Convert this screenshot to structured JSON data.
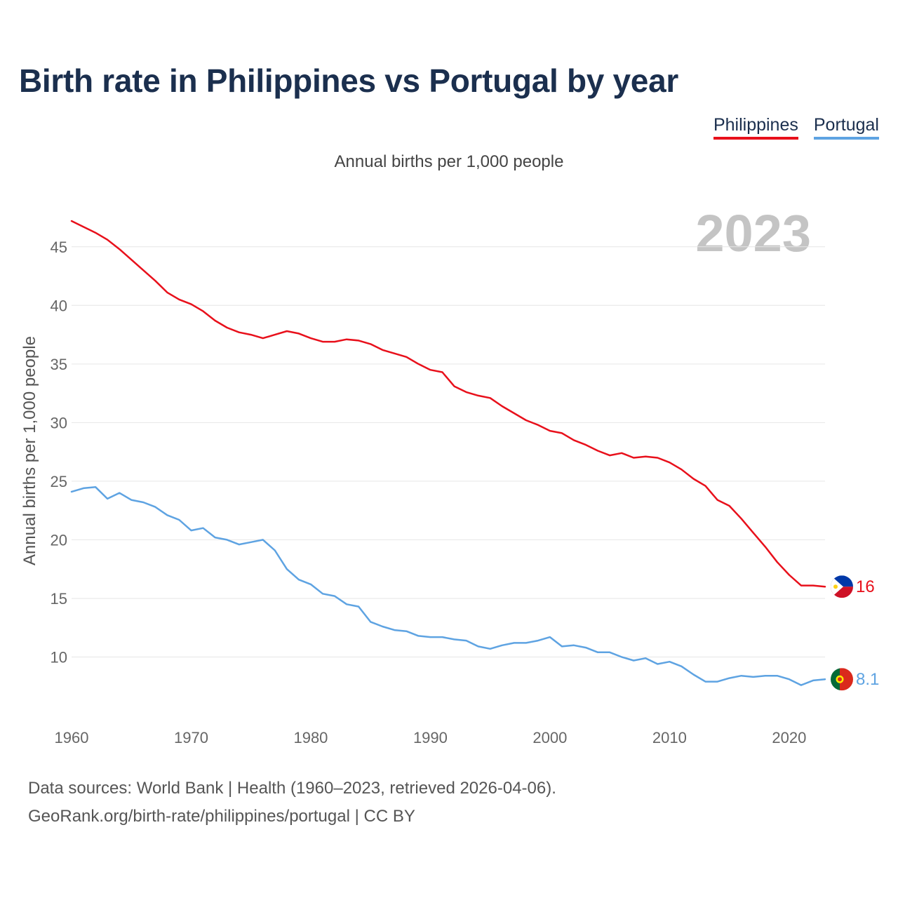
{
  "chart_data": {
    "type": "line",
    "title": "Birth rate in Philippines vs Portugal by year",
    "subtitle": "Annual births per 1,000 people",
    "ylabel": "Annual births per 1,000 people",
    "xlabel": "",
    "current_year": "2023",
    "xlim": [
      1960,
      2023
    ],
    "ylim": [
      5.3,
      47.5
    ],
    "x_ticks": [
      1960,
      1970,
      1980,
      1990,
      2000,
      2010,
      2020
    ],
    "y_ticks": [
      10,
      15,
      20,
      25,
      30,
      35,
      40,
      45
    ],
    "grid": true,
    "legend_position": "top-right",
    "x": [
      1960,
      1961,
      1962,
      1963,
      1964,
      1965,
      1966,
      1967,
      1968,
      1969,
      1970,
      1971,
      1972,
      1973,
      1974,
      1975,
      1976,
      1977,
      1978,
      1979,
      1980,
      1981,
      1982,
      1983,
      1984,
      1985,
      1986,
      1987,
      1988,
      1989,
      1990,
      1991,
      1992,
      1993,
      1994,
      1995,
      1996,
      1997,
      1998,
      1999,
      2000,
      2001,
      2002,
      2003,
      2004,
      2005,
      2006,
      2007,
      2008,
      2009,
      2010,
      2011,
      2012,
      2013,
      2014,
      2015,
      2016,
      2017,
      2018,
      2019,
      2020,
      2021,
      2022,
      2023
    ],
    "series": [
      {
        "name": "Philippines",
        "color": "#e8101b",
        "end_label": "16",
        "flag": "philippines-flag",
        "values": [
          47.2,
          46.7,
          46.2,
          45.6,
          44.8,
          43.9,
          43.0,
          42.1,
          41.1,
          40.5,
          40.1,
          39.5,
          38.7,
          38.1,
          37.7,
          37.5,
          37.2,
          37.5,
          37.8,
          37.6,
          37.2,
          36.9,
          36.9,
          37.1,
          37.0,
          36.7,
          36.2,
          35.9,
          35.6,
          35.0,
          34.5,
          34.3,
          33.1,
          32.6,
          32.3,
          32.1,
          31.4,
          30.8,
          30.2,
          29.8,
          29.3,
          29.1,
          28.5,
          28.1,
          27.6,
          27.2,
          27.4,
          27.0,
          27.1,
          27.0,
          26.6,
          26.0,
          25.2,
          24.6,
          23.4,
          22.9,
          21.8,
          20.6,
          19.4,
          18.1,
          17.0,
          16.1,
          16.1,
          16.0
        ]
      },
      {
        "name": "Portugal",
        "color": "#5ea3e2",
        "end_label": "8.1",
        "flag": "portugal-flag",
        "values": [
          24.1,
          24.4,
          24.5,
          23.5,
          24.0,
          23.4,
          23.2,
          22.8,
          22.1,
          21.7,
          20.8,
          21.0,
          20.2,
          20.0,
          19.6,
          19.8,
          20.0,
          19.1,
          17.5,
          16.6,
          16.2,
          15.4,
          15.2,
          14.5,
          14.3,
          13.0,
          12.6,
          12.3,
          12.2,
          11.8,
          11.7,
          11.7,
          11.5,
          11.4,
          10.9,
          10.7,
          11.0,
          11.2,
          11.2,
          11.4,
          11.7,
          10.9,
          11.0,
          10.8,
          10.4,
          10.4,
          10.0,
          9.7,
          9.9,
          9.4,
          9.6,
          9.2,
          8.5,
          7.9,
          7.9,
          8.2,
          8.4,
          8.3,
          8.4,
          8.4,
          8.1,
          7.6,
          8.0,
          8.1
        ]
      }
    ]
  },
  "footer": {
    "line1": "Data sources: World Bank | Health (1960–2023, retrieved 2026-04-06).",
    "line2": "GeoRank.org/birth-rate/philippines/portugal | CC BY"
  }
}
